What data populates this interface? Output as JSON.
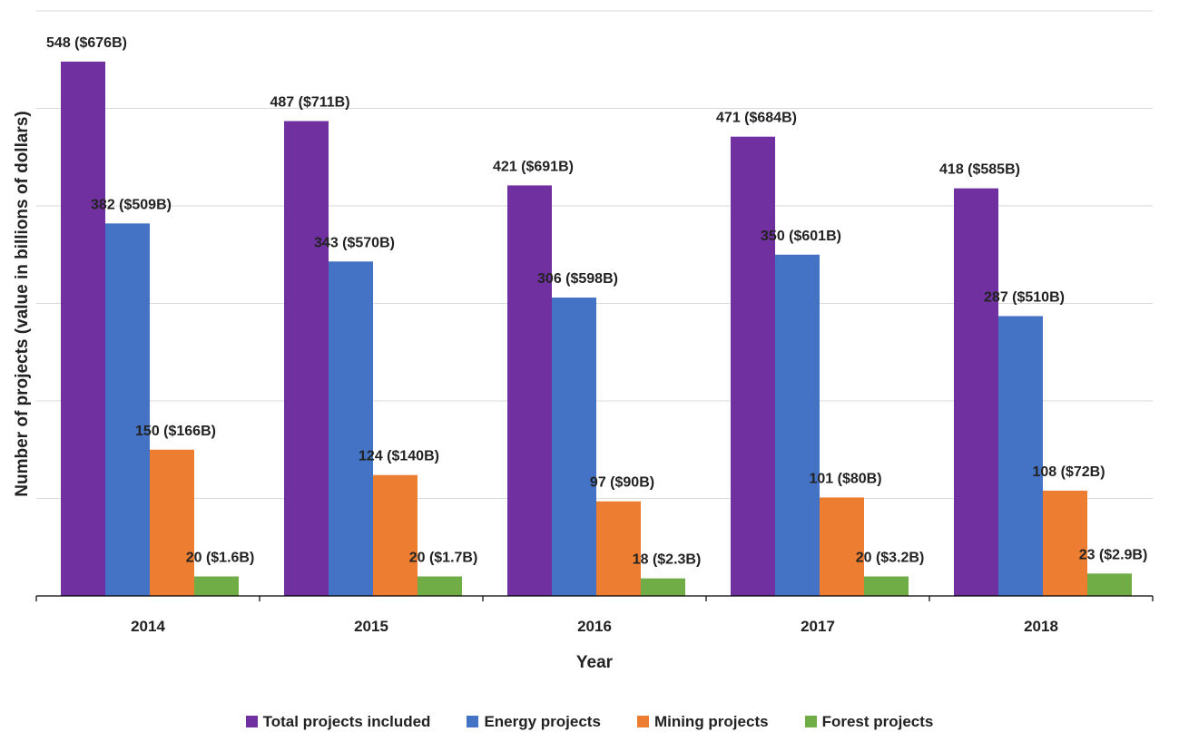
{
  "chart_data": {
    "type": "bar",
    "title": "",
    "xlabel": "Year",
    "ylabel": "Number of projects (value in billions of dollars)",
    "categories": [
      "2014",
      "2015",
      "2016",
      "2017",
      "2018"
    ],
    "ylim": [
      0,
      600
    ],
    "grid": true,
    "legend_position": "bottom",
    "series": [
      {
        "name": "Total projects included",
        "color": "#7030a0",
        "values": [
          548,
          487,
          421,
          471,
          418
        ],
        "labels": [
          "548 ($676B)",
          "487 ($711B)",
          "421 ($691B)",
          "471 ($684B)",
          "418 ($585B)"
        ]
      },
      {
        "name": "Energy projects",
        "color": "#4472c4",
        "values": [
          382,
          343,
          306,
          350,
          287
        ],
        "labels": [
          "382 ($509B)",
          "343 ($570B)",
          "306 ($598B)",
          "350 ($601B)",
          "287 ($510B)"
        ]
      },
      {
        "name": "Mining projects",
        "color": "#ed7d31",
        "values": [
          150,
          124,
          97,
          101,
          108
        ],
        "labels": [
          "150 ($166B)",
          "124 ($140B)",
          "97 ($90B)",
          "101 ($80B)",
          "108 ($72B)"
        ]
      },
      {
        "name": "Forest projects",
        "color": "#70ad47",
        "values": [
          20,
          20,
          18,
          20,
          23
        ],
        "labels": [
          "20 ($1.6B)",
          "20 ($1.7B)",
          "18 ($2.3B)",
          "20 ($3.2B)",
          "23 ($2.9B)"
        ]
      }
    ]
  }
}
